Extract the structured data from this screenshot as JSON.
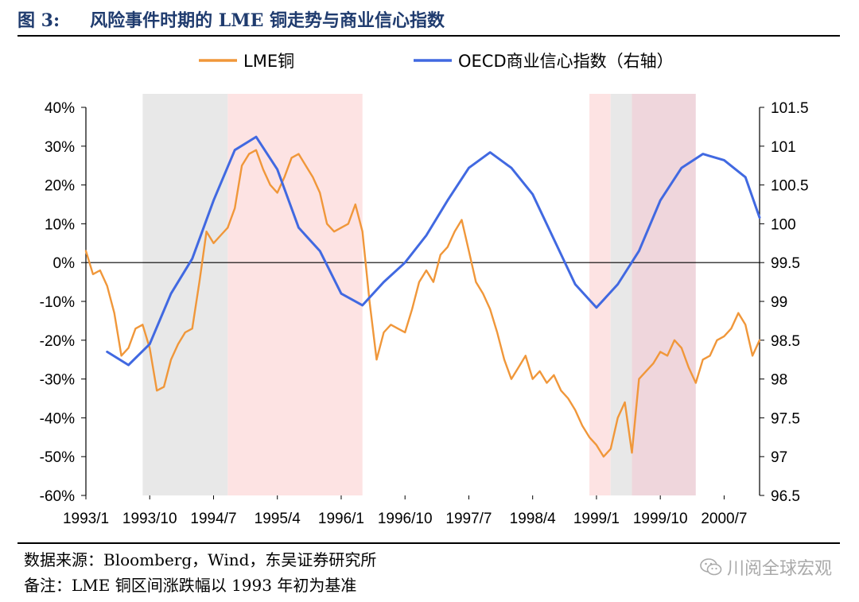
{
  "header": {
    "figure_number": "图 3:",
    "title": "风险事件时期的 LME 铜走势与商业信心指数"
  },
  "footer": {
    "source": "数据来源：Bloomberg，Wind，东吴证券研究所",
    "note": "备注：LME 铜区间涨跌幅以 1993 年初为基准"
  },
  "watermark": {
    "text": "川阅全球宏观",
    "icon": "wechat-icon"
  },
  "chart_data": {
    "type": "line",
    "x_tick_labels": [
      "1993/1",
      "1993/10",
      "1994/7",
      "1995/4",
      "1996/1",
      "1996/10",
      "1997/7",
      "1998/4",
      "1999/1",
      "1999/10",
      "2000/7"
    ],
    "x_range": [
      "1993-01",
      "2000-12"
    ],
    "y_left": {
      "range": [
        -60,
        40
      ],
      "tick_labels": [
        "40%",
        "30%",
        "20%",
        "10%",
        "0%",
        "-10%",
        "-20%",
        "-30%",
        "-40%",
        "-50%",
        "-60%"
      ],
      "unit": "%"
    },
    "y_right": {
      "range": [
        96.5,
        101.5
      ],
      "tick_labels": [
        "101.5",
        "101",
        "100.5",
        "100",
        "99.5",
        "99",
        "98.5",
        "98",
        "97.5",
        "97",
        "96.5"
      ]
    },
    "legend": {
      "position": "top"
    },
    "shaded_periods": [
      {
        "start": "1993-09",
        "end": "1994-09",
        "color": "#e8e8e8"
      },
      {
        "start": "1994-09",
        "end": "1996-04",
        "color": "#fde3e3"
      },
      {
        "start": "1998-12",
        "end": "1999-03",
        "color": "#fde3e3"
      },
      {
        "start": "1999-03",
        "end": "1999-06",
        "color": "#e8e8e8"
      },
      {
        "start": "1999-06",
        "end": "2000-03",
        "color": "#efd6dc"
      }
    ],
    "series": [
      {
        "name": "LME铜",
        "axis": "left",
        "color": "#f0973a",
        "points": [
          [
            "1993-01",
            3
          ],
          [
            "1993-02",
            -3
          ],
          [
            "1993-03",
            -2
          ],
          [
            "1993-04",
            -6
          ],
          [
            "1993-05",
            -13
          ],
          [
            "1993-06",
            -24
          ],
          [
            "1993-07",
            -22
          ],
          [
            "1993-08",
            -17
          ],
          [
            "1993-09",
            -16
          ],
          [
            "1993-10",
            -22
          ],
          [
            "1993-11",
            -33
          ],
          [
            "1993-12",
            -32
          ],
          [
            "1994-01",
            -25
          ],
          [
            "1994-02",
            -21
          ],
          [
            "1994-03",
            -18
          ],
          [
            "1994-04",
            -17
          ],
          [
            "1994-05",
            -5
          ],
          [
            "1994-06",
            8
          ],
          [
            "1994-07",
            5
          ],
          [
            "1994-08",
            7
          ],
          [
            "1994-09",
            9
          ],
          [
            "1994-10",
            14
          ],
          [
            "1994-11",
            25
          ],
          [
            "1994-12",
            28
          ],
          [
            "1995-01",
            29
          ],
          [
            "1995-02",
            24
          ],
          [
            "1995-03",
            20
          ],
          [
            "1995-04",
            18
          ],
          [
            "1995-05",
            22
          ],
          [
            "1995-06",
            27
          ],
          [
            "1995-07",
            28
          ],
          [
            "1995-08",
            25
          ],
          [
            "1995-09",
            22
          ],
          [
            "1995-10",
            18
          ],
          [
            "1995-11",
            10
          ],
          [
            "1995-12",
            8
          ],
          [
            "1996-01",
            9
          ],
          [
            "1996-02",
            10
          ],
          [
            "1996-03",
            15
          ],
          [
            "1996-04",
            8
          ],
          [
            "1996-05",
            -10
          ],
          [
            "1996-06",
            -25
          ],
          [
            "1996-07",
            -18
          ],
          [
            "1996-08",
            -16
          ],
          [
            "1996-09",
            -17
          ],
          [
            "1996-10",
            -18
          ],
          [
            "1996-11",
            -12
          ],
          [
            "1996-12",
            -5
          ],
          [
            "1997-01",
            -2
          ],
          [
            "1997-02",
            -5
          ],
          [
            "1997-03",
            2
          ],
          [
            "1997-04",
            4
          ],
          [
            "1997-05",
            8
          ],
          [
            "1997-06",
            11
          ],
          [
            "1997-07",
            3
          ],
          [
            "1997-08",
            -5
          ],
          [
            "1997-09",
            -8
          ],
          [
            "1997-10",
            -12
          ],
          [
            "1997-11",
            -18
          ],
          [
            "1997-12",
            -25
          ],
          [
            "1998-01",
            -30
          ],
          [
            "1998-02",
            -27
          ],
          [
            "1998-03",
            -24
          ],
          [
            "1998-04",
            -30
          ],
          [
            "1998-05",
            -28
          ],
          [
            "1998-06",
            -31
          ],
          [
            "1998-07",
            -29
          ],
          [
            "1998-08",
            -33
          ],
          [
            "1998-09",
            -35
          ],
          [
            "1998-10",
            -38
          ],
          [
            "1998-11",
            -42
          ],
          [
            "1998-12",
            -45
          ],
          [
            "1999-01",
            -47
          ],
          [
            "1999-02",
            -50
          ],
          [
            "1999-03",
            -48
          ],
          [
            "1999-04",
            -40
          ],
          [
            "1999-05",
            -36
          ],
          [
            "1999-06",
            -49
          ],
          [
            "1999-07",
            -30
          ],
          [
            "1999-08",
            -28
          ],
          [
            "1999-09",
            -26
          ],
          [
            "1999-10",
            -23
          ],
          [
            "1999-11",
            -24
          ],
          [
            "1999-12",
            -20
          ],
          [
            "2000-01",
            -22
          ],
          [
            "2000-02",
            -27
          ],
          [
            "2000-03",
            -31
          ],
          [
            "2000-04",
            -25
          ],
          [
            "2000-05",
            -24
          ],
          [
            "2000-06",
            -20
          ],
          [
            "2000-07",
            -19
          ],
          [
            "2000-08",
            -17
          ],
          [
            "2000-09",
            -13
          ],
          [
            "2000-10",
            -16
          ],
          [
            "2000-11",
            -24
          ],
          [
            "2000-12",
            -20
          ]
        ]
      },
      {
        "name": "OECD商业信心指数（右轴）",
        "axis": "right",
        "color": "#4169e1",
        "points": [
          [
            "1993-04",
            98.35
          ],
          [
            "1993-07",
            98.18
          ],
          [
            "1993-10",
            98.45
          ],
          [
            "1994-01",
            99.1
          ],
          [
            "1994-04",
            99.55
          ],
          [
            "1994-07",
            100.3
          ],
          [
            "1994-10",
            100.95
          ],
          [
            "1995-01",
            101.12
          ],
          [
            "1995-04",
            100.7
          ],
          [
            "1995-07",
            99.95
          ],
          [
            "1995-10",
            99.65
          ],
          [
            "1996-01",
            99.1
          ],
          [
            "1996-04",
            98.95
          ],
          [
            "1996-07",
            99.25
          ],
          [
            "1996-10",
            99.5
          ],
          [
            "1997-01",
            99.85
          ],
          [
            "1997-04",
            100.3
          ],
          [
            "1997-07",
            100.72
          ],
          [
            "1997-10",
            100.92
          ],
          [
            "1998-01",
            100.72
          ],
          [
            "1998-04",
            100.38
          ],
          [
            "1998-07",
            99.8
          ],
          [
            "1998-10",
            99.22
          ],
          [
            "1999-01",
            98.92
          ],
          [
            "1999-04",
            99.22
          ],
          [
            "1999-07",
            99.65
          ],
          [
            "1999-10",
            100.3
          ],
          [
            "2000-01",
            100.72
          ],
          [
            "2000-04",
            100.9
          ],
          [
            "2000-07",
            100.82
          ],
          [
            "2000-10",
            100.6
          ],
          [
            "2001-01",
            100.08
          ]
        ]
      }
    ]
  }
}
